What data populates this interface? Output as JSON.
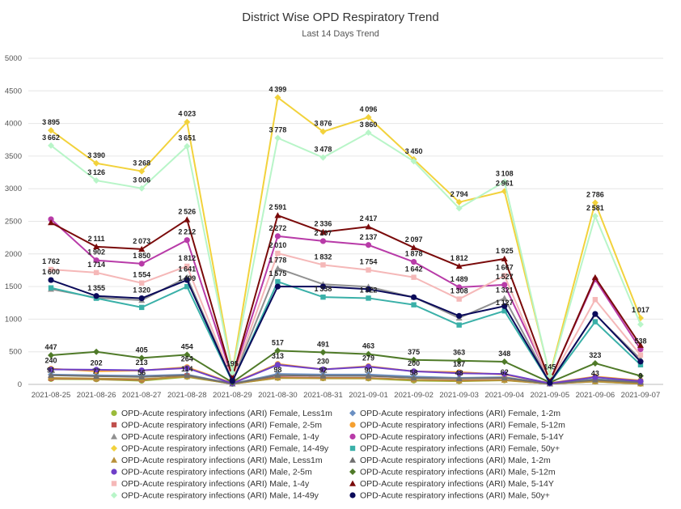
{
  "chart_data": {
    "type": "line",
    "title": "District Wise OPD Respiratory Trend",
    "subtitle": "Last 14 Days Trend",
    "xlabel": "",
    "ylabel": "",
    "ylim": [
      0,
      5000
    ],
    "yticks": [
      0,
      500,
      1000,
      1500,
      2000,
      2500,
      3000,
      3500,
      4000,
      4500,
      5000
    ],
    "grid": true,
    "legend_position": "bottom",
    "categories": [
      "2021-08-25",
      "2021-08-26",
      "2021-08-27",
      "2021-08-28",
      "2021-08-29",
      "2021-08-30",
      "2021-08-31",
      "2021-09-01",
      "2021-09-02",
      "2021-09-03",
      "2021-09-04",
      "2021-09-05",
      "2021-09-06",
      "2021-09-07"
    ],
    "series": [
      {
        "name": "OPD-Acute respiratory infections (ARI) Female, Less1m",
        "color": "#9bbb3b",
        "marker": "circle",
        "values": [
          82,
          77,
          56,
          114,
          8,
          98,
          92,
          90,
          58,
          48,
          62,
          12,
          43,
          9
        ],
        "labels": [
          false,
          true,
          true,
          true,
          false,
          true,
          true,
          true,
          true,
          true,
          true,
          false,
          true,
          true
        ]
      },
      {
        "name": "OPD-Acute respiratory infections (ARI) Female, 1-2m",
        "color": "#6a8fc2",
        "marker": "diamond",
        "values": [
          150,
          140,
          130,
          150,
          10,
          160,
          150,
          150,
          120,
          100,
          110,
          12,
          80,
          40
        ],
        "labels": [
          false,
          false,
          false,
          false,
          false,
          false,
          false,
          false,
          false,
          false,
          false,
          false,
          false,
          false
        ]
      },
      {
        "name": "OPD-Acute respiratory infections (ARI) Female, 2-5m",
        "color": "#c0504d",
        "marker": "square",
        "values": [
          91,
          85,
          70,
          130,
          9,
          110,
          100,
          100,
          70,
          60,
          70,
          10,
          50,
          20
        ],
        "labels": [
          true,
          false,
          false,
          false,
          false,
          false,
          false,
          false,
          false,
          false,
          false,
          false,
          false,
          false
        ]
      },
      {
        "name": "OPD-Acute respiratory infections (ARI) Female, 5-12m",
        "color": "#f5a030",
        "marker": "circle",
        "values": [
          240,
          202,
          213,
          264,
          20,
          313,
          230,
          279,
          200,
          187,
          150,
          20,
          120,
          60
        ],
        "labels": [
          true,
          true,
          true,
          true,
          false,
          true,
          true,
          true,
          true,
          true,
          false,
          false,
          false,
          false
        ]
      },
      {
        "name": "OPD-Acute respiratory infections (ARI) Female, 1-4y",
        "color": "#909090",
        "marker": "triangle",
        "values": [
          1460,
          1330,
          1290,
          1641,
          60,
          1778,
          1536,
          1496,
          1336,
          1019,
          1321,
          30,
          1073,
          387
        ],
        "labels": [
          false,
          false,
          false,
          true,
          false,
          true,
          false,
          false,
          false,
          false,
          true,
          false,
          false,
          false
        ]
      },
      {
        "name": "OPD-Acute respiratory infections (ARI) Female, 5-14Y",
        "color": "#b83ba8",
        "marker": "circle",
        "values": [
          2532,
          1902,
          1850,
          2212,
          100,
          2272,
          2197,
          2137,
          1878,
          1489,
          1527,
          60,
          1609,
          538
        ],
        "labels": [
          false,
          true,
          true,
          true,
          false,
          true,
          true,
          true,
          true,
          true,
          true,
          false,
          false,
          true
        ]
      },
      {
        "name": "OPD-Acute respiratory infections (ARI) Female, 14-49y",
        "color": "#f2d23c",
        "marker": "diamond",
        "values": [
          3895,
          3390,
          3268,
          4023,
          195,
          4399,
          3876,
          4096,
          3450,
          2794,
          2961,
          145,
          2786,
          1017
        ],
        "labels": [
          true,
          true,
          true,
          true,
          true,
          true,
          true,
          true,
          true,
          true,
          true,
          true,
          true,
          true
        ]
      },
      {
        "name": "OPD-Acute respiratory infections (ARI) Female, 50y+",
        "color": "#3ab0a8",
        "marker": "square",
        "values": [
          1480,
          1320,
          1180,
          1499,
          40,
          1575,
          1338,
          1322,
          1220,
          910,
          1127,
          20,
          960,
          300
        ],
        "labels": [
          false,
          false,
          false,
          true,
          false,
          true,
          true,
          true,
          false,
          false,
          true,
          false,
          false,
          false
        ]
      },
      {
        "name": "OPD-Acute respiratory infections (ARI) Male, Less1m",
        "color": "#b8903a",
        "marker": "triangle",
        "values": [
          100,
          90,
          80,
          120,
          8,
          100,
          95,
          95,
          70,
          55,
          65,
          10,
          45,
          10
        ],
        "labels": [
          false,
          false,
          false,
          false,
          false,
          false,
          false,
          false,
          false,
          false,
          false,
          false,
          false,
          false
        ]
      },
      {
        "name": "OPD-Acute respiratory infections (ARI) Male, 1-2m",
        "color": "#707070",
        "marker": "triangle",
        "values": [
          140,
          125,
          115,
          140,
          9,
          140,
          130,
          130,
          100,
          90,
          100,
          10,
          70,
          30
        ],
        "labels": [
          false,
          false,
          false,
          false,
          false,
          false,
          false,
          false,
          false,
          false,
          false,
          false,
          false,
          false
        ]
      },
      {
        "name": "OPD-Acute respiratory infections (ARI) Male, 2-5m",
        "color": "#6f3fc8",
        "marker": "circle",
        "values": [
          230,
          225,
          215,
          250,
          15,
          300,
          230,
          270,
          200,
          170,
          160,
          15,
          110,
          50
        ],
        "labels": [
          false,
          false,
          false,
          false,
          false,
          false,
          false,
          false,
          false,
          false,
          false,
          false,
          false,
          false
        ]
      },
      {
        "name": "OPD-Acute respiratory infections (ARI) Male, 5-12m",
        "color": "#4f7a28",
        "marker": "diamond",
        "values": [
          447,
          500,
          405,
          454,
          30,
          517,
          491,
          463,
          375,
          363,
          348,
          30,
          323,
          130
        ],
        "labels": [
          true,
          false,
          true,
          true,
          false,
          true,
          true,
          true,
          true,
          true,
          true,
          false,
          true,
          false
        ]
      },
      {
        "name": "OPD-Acute respiratory infections (ARI) Male, 1-4y",
        "color": "#f5b8b8",
        "marker": "square",
        "values": [
          1762,
          1714,
          1554,
          1812,
          70,
          2010,
          1832,
          1754,
          1642,
          1308,
          1667,
          40,
          1300,
          450
        ],
        "labels": [
          true,
          true,
          true,
          true,
          false,
          true,
          true,
          true,
          true,
          true,
          true,
          false,
          false,
          false
        ]
      },
      {
        "name": "OPD-Acute respiratory infections (ARI) Male, 5-14Y",
        "color": "#7a0a0a",
        "marker": "triangle",
        "values": [
          2480,
          2111,
          2073,
          2526,
          110,
          2591,
          2336,
          2417,
          2097,
          1812,
          1925,
          50,
          1640,
          600
        ],
        "labels": [
          false,
          true,
          true,
          true,
          false,
          true,
          true,
          true,
          true,
          true,
          true,
          false,
          false,
          false
        ]
      },
      {
        "name": "OPD-Acute respiratory infections (ARI) Male, 14-49y",
        "color": "#b8f5c8",
        "marker": "diamond",
        "values": [
          3662,
          3126,
          3006,
          3651,
          180,
          3778,
          3478,
          3860,
          3420,
          2700,
          3108,
          130,
          2581,
          920
        ],
        "labels": [
          true,
          true,
          true,
          true,
          false,
          true,
          true,
          true,
          false,
          false,
          true,
          false,
          true,
          false
        ]
      },
      {
        "name": "OPD-Acute respiratory infections (ARI) Male, 50y+",
        "color": "#0a0a5a",
        "marker": "circle",
        "values": [
          1600,
          1355,
          1320,
          1600,
          50,
          1500,
          1500,
          1460,
          1336,
          1050,
          1200,
          25,
          1080,
          350
        ],
        "labels": [
          true,
          true,
          true,
          false,
          false,
          false,
          false,
          false,
          false,
          false,
          false,
          false,
          false,
          false
        ]
      }
    ]
  }
}
